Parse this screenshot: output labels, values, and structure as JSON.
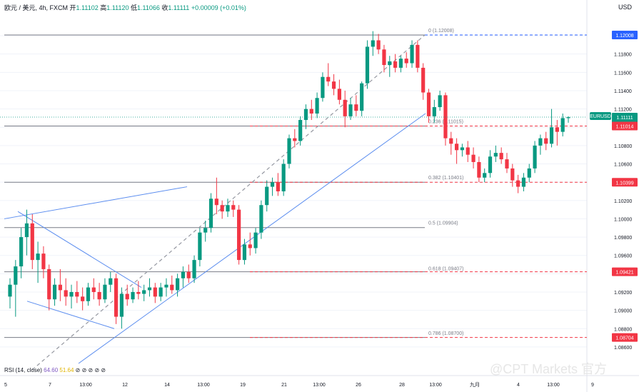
{
  "header": {
    "symbol": "欧元 / 美元, 4h, FXCM",
    "o_label": "开",
    "o": "1.11102",
    "h_label": "高",
    "h": "1.11120",
    "l_label": "低",
    "l": "1.11066",
    "c_label": "收",
    "c": "1.11111",
    "chg": "+0.00009 (+0.01%)"
  },
  "currency_label": "USD",
  "rsi_label": "RSI (14, close)",
  "rsi_values": [
    "64.60",
    "51.64"
  ],
  "watermark": "@CPT Markets 官方",
  "colors": {
    "up": "#089981",
    "down": "#f23645",
    "trend": "#5b8def",
    "level": "#787b86",
    "dash": "#f23645",
    "fib_top": "#2962ff"
  },
  "chart_data": {
    "type": "candlestick",
    "symbol": "EURUSD",
    "timeframe": "4h",
    "ylim": [
      1.0849,
      1.1225
    ],
    "y_ticks": [
      "1.12000",
      "1.11800",
      "1.11600",
      "1.11400",
      "1.11200",
      "1.11000",
      "1.10800",
      "1.10600",
      "1.10400",
      "1.10200",
      "1.10000",
      "1.09800",
      "1.09600",
      "1.09400",
      "1.09200",
      "1.09000",
      "1.08800",
      "1.08600"
    ],
    "x_ticks": [
      "5",
      "7",
      "13:00",
      "12",
      "14",
      "13:00",
      "19",
      "21",
      "13:00",
      "26",
      "28",
      "13:00",
      "九月",
      "4",
      "13:00",
      "9"
    ],
    "price_badges": [
      {
        "label": "1.12008",
        "value": 1.12008,
        "color": "#2962ff"
      },
      {
        "label": "EURUSD",
        "value": 1.11135,
        "color": "#089981"
      },
      {
        "label": "1.11111",
        "value": 1.11111,
        "color": "#089981"
      },
      {
        "label": "01:13:11",
        "value": 1.11111,
        "color": "#089981"
      },
      {
        "label": "1.11014",
        "value": 1.11014,
        "color": "#f23645"
      },
      {
        "label": "1.10399",
        "value": 1.10399,
        "color": "#f23645"
      },
      {
        "label": "1.09421",
        "value": 1.09421,
        "color": "#f23645"
      },
      {
        "label": "1.08704",
        "value": 1.08704,
        "color": "#f23645"
      }
    ],
    "horizontal_levels": [
      1.12008,
      1.11014,
      1.10399,
      1.09904,
      1.09421,
      1.08704
    ],
    "fibonacci": [
      {
        "label": "0 (1.12008)",
        "value": 1.12008
      },
      {
        "label": "0.236 (1.11015)",
        "value": 1.11015
      },
      {
        "label": "0.382 (1.10401)",
        "value": 1.10401
      },
      {
        "label": "0.5 (1.09904)",
        "value": 1.09904
      },
      {
        "label": "0.618 (1.09407)",
        "value": 1.09407
      },
      {
        "label": "0.786 (1.08700)",
        "value": 1.087
      }
    ],
    "ohlc": [
      [
        1.0915,
        1.0935,
        1.0902,
        1.0928
      ],
      [
        1.0928,
        1.0955,
        1.0893,
        1.0948
      ],
      [
        1.0948,
        1.099,
        1.0935,
        1.098
      ],
      [
        1.098,
        1.101,
        1.096,
        1.0995
      ],
      [
        1.0995,
        1.1005,
        1.0945,
        1.0955
      ],
      [
        1.0955,
        1.0975,
        1.093,
        1.0962
      ],
      [
        1.0962,
        1.097,
        1.0935,
        1.0945
      ],
      [
        1.0945,
        1.095,
        1.09,
        1.0912
      ],
      [
        1.0912,
        1.0935,
        1.0905,
        1.0928
      ],
      [
        1.0928,
        1.0945,
        1.091,
        1.0922
      ],
      [
        1.0922,
        1.0935,
        1.0905,
        1.0915
      ],
      [
        1.0915,
        1.0928,
        1.0902,
        1.092
      ],
      [
        1.092,
        1.0932,
        1.0908,
        1.0915
      ],
      [
        1.0915,
        1.0925,
        1.09,
        1.091
      ],
      [
        1.091,
        1.093,
        1.0905,
        1.0925
      ],
      [
        1.0925,
        1.0935,
        1.0912,
        1.092
      ],
      [
        1.092,
        1.093,
        1.0905,
        1.0912
      ],
      [
        1.0912,
        1.0935,
        1.0908,
        1.0928
      ],
      [
        1.0928,
        1.0942,
        1.092,
        1.0935
      ],
      [
        1.0935,
        1.094,
        1.0885,
        1.0893
      ],
      [
        1.0893,
        1.0925,
        1.088,
        1.0918
      ],
      [
        1.0918,
        1.0928,
        1.0905,
        1.0912
      ],
      [
        1.0912,
        1.0925,
        1.0908,
        1.092
      ],
      [
        1.092,
        1.0932,
        1.0912,
        1.0918
      ],
      [
        1.0918,
        1.0928,
        1.091,
        1.0922
      ],
      [
        1.0922,
        1.0935,
        1.0915,
        1.0925
      ],
      [
        1.0925,
        1.093,
        1.0908,
        1.0915
      ],
      [
        1.0915,
        1.093,
        1.091,
        1.0925
      ],
      [
        1.0925,
        1.0935,
        1.0915,
        1.0928
      ],
      [
        1.0928,
        1.0938,
        1.0918,
        1.0922
      ],
      [
        1.0922,
        1.094,
        1.0915,
        1.0935
      ],
      [
        1.0935,
        1.0948,
        1.0925,
        1.0942
      ],
      [
        1.0942,
        1.095,
        1.093,
        1.0935
      ],
      [
        1.0935,
        1.096,
        1.093,
        1.0955
      ],
      [
        1.0955,
        1.099,
        1.0948,
        1.0985
      ],
      [
        1.0985,
        1.0998,
        1.0975,
        1.099
      ],
      [
        1.099,
        1.1028,
        1.0985,
        1.1022
      ],
      [
        1.1022,
        1.1045,
        1.1005,
        1.1015
      ],
      [
        1.1015,
        1.102,
        1.1,
        1.1008
      ],
      [
        1.1008,
        1.1022,
        1.1002,
        1.1015
      ],
      [
        1.1015,
        1.102,
        1.1002,
        1.101
      ],
      [
        1.101,
        1.1015,
        1.095,
        1.0955
      ],
      [
        1.0955,
        1.0978,
        1.095,
        1.0972
      ],
      [
        1.0972,
        1.0985,
        1.096,
        1.0968
      ],
      [
        1.0968,
        1.099,
        1.0962,
        1.0985
      ],
      [
        1.0985,
        1.102,
        1.0978,
        1.1015
      ],
      [
        1.1015,
        1.1042,
        1.1008,
        1.1035
      ],
      [
        1.1035,
        1.1045,
        1.1025,
        1.104
      ],
      [
        1.104,
        1.105,
        1.1025,
        1.103
      ],
      [
        1.103,
        1.1065,
        1.1025,
        1.106
      ],
      [
        1.106,
        1.1092,
        1.1055,
        1.1088
      ],
      [
        1.1088,
        1.1098,
        1.1078,
        1.1085
      ],
      [
        1.1085,
        1.1112,
        1.108,
        1.1108
      ],
      [
        1.1108,
        1.1125,
        1.1098,
        1.112
      ],
      [
        1.112,
        1.113,
        1.1108,
        1.1115
      ],
      [
        1.1115,
        1.1138,
        1.111,
        1.1132
      ],
      [
        1.1132,
        1.116,
        1.1128,
        1.1155
      ],
      [
        1.1155,
        1.117,
        1.1145,
        1.115
      ],
      [
        1.115,
        1.1158,
        1.1135,
        1.1142
      ],
      [
        1.1142,
        1.1152,
        1.1125,
        1.113
      ],
      [
        1.113,
        1.114,
        1.11,
        1.1112
      ],
      [
        1.1112,
        1.1132,
        1.1108,
        1.1125
      ],
      [
        1.1125,
        1.1135,
        1.1112,
        1.1118
      ],
      [
        1.1118,
        1.115,
        1.1112,
        1.1148
      ],
      [
        1.1148,
        1.1195,
        1.1142,
        1.1188
      ],
      [
        1.1188,
        1.1205,
        1.1178,
        1.1195
      ],
      [
        1.1195,
        1.1202,
        1.118,
        1.1185
      ],
      [
        1.1185,
        1.119,
        1.116,
        1.1168
      ],
      [
        1.1168,
        1.1178,
        1.1155,
        1.1172
      ],
      [
        1.1172,
        1.118,
        1.116,
        1.1165
      ],
      [
        1.1165,
        1.1178,
        1.116,
        1.1175
      ],
      [
        1.1175,
        1.1182,
        1.1165,
        1.117
      ],
      [
        1.117,
        1.1195,
        1.1165,
        1.119
      ],
      [
        1.119,
        1.1195,
        1.116,
        1.1165
      ],
      [
        1.1165,
        1.117,
        1.113,
        1.1138
      ],
      [
        1.1138,
        1.1142,
        1.1105,
        1.1112
      ],
      [
        1.1112,
        1.113,
        1.1105,
        1.1122
      ],
      [
        1.1122,
        1.114,
        1.1118,
        1.1135
      ],
      [
        1.1135,
        1.1138,
        1.108,
        1.1088
      ],
      [
        1.1088,
        1.1095,
        1.107,
        1.1082
      ],
      [
        1.1082,
        1.1088,
        1.106,
        1.1075
      ],
      [
        1.1075,
        1.1082,
        1.1068,
        1.1078
      ],
      [
        1.1078,
        1.1085,
        1.1062,
        1.107
      ],
      [
        1.107,
        1.1078,
        1.1055,
        1.1062
      ],
      [
        1.1062,
        1.1068,
        1.104,
        1.1045
      ],
      [
        1.1045,
        1.1055,
        1.104,
        1.105
      ],
      [
        1.105,
        1.1075,
        1.1045,
        1.1068
      ],
      [
        1.1068,
        1.108,
        1.1062,
        1.1072
      ],
      [
        1.1072,
        1.1078,
        1.106,
        1.1065
      ],
      [
        1.1065,
        1.1072,
        1.105,
        1.1055
      ],
      [
        1.1055,
        1.106,
        1.1035,
        1.1042
      ],
      [
        1.1042,
        1.1048,
        1.1028,
        1.1035
      ],
      [
        1.1035,
        1.105,
        1.103,
        1.1045
      ],
      [
        1.1045,
        1.106,
        1.104,
        1.1055
      ],
      [
        1.1055,
        1.1085,
        1.105,
        1.108
      ],
      [
        1.108,
        1.1092,
        1.107,
        1.1088
      ],
      [
        1.1088,
        1.1095,
        1.1075,
        1.1082
      ],
      [
        1.1082,
        1.112,
        1.1078,
        1.11
      ],
      [
        1.11,
        1.1108,
        1.108,
        1.1095
      ],
      [
        1.1095,
        1.1115,
        1.109,
        1.111
      ],
      [
        1.111,
        1.1112,
        1.1105,
        1.1111
      ]
    ]
  }
}
